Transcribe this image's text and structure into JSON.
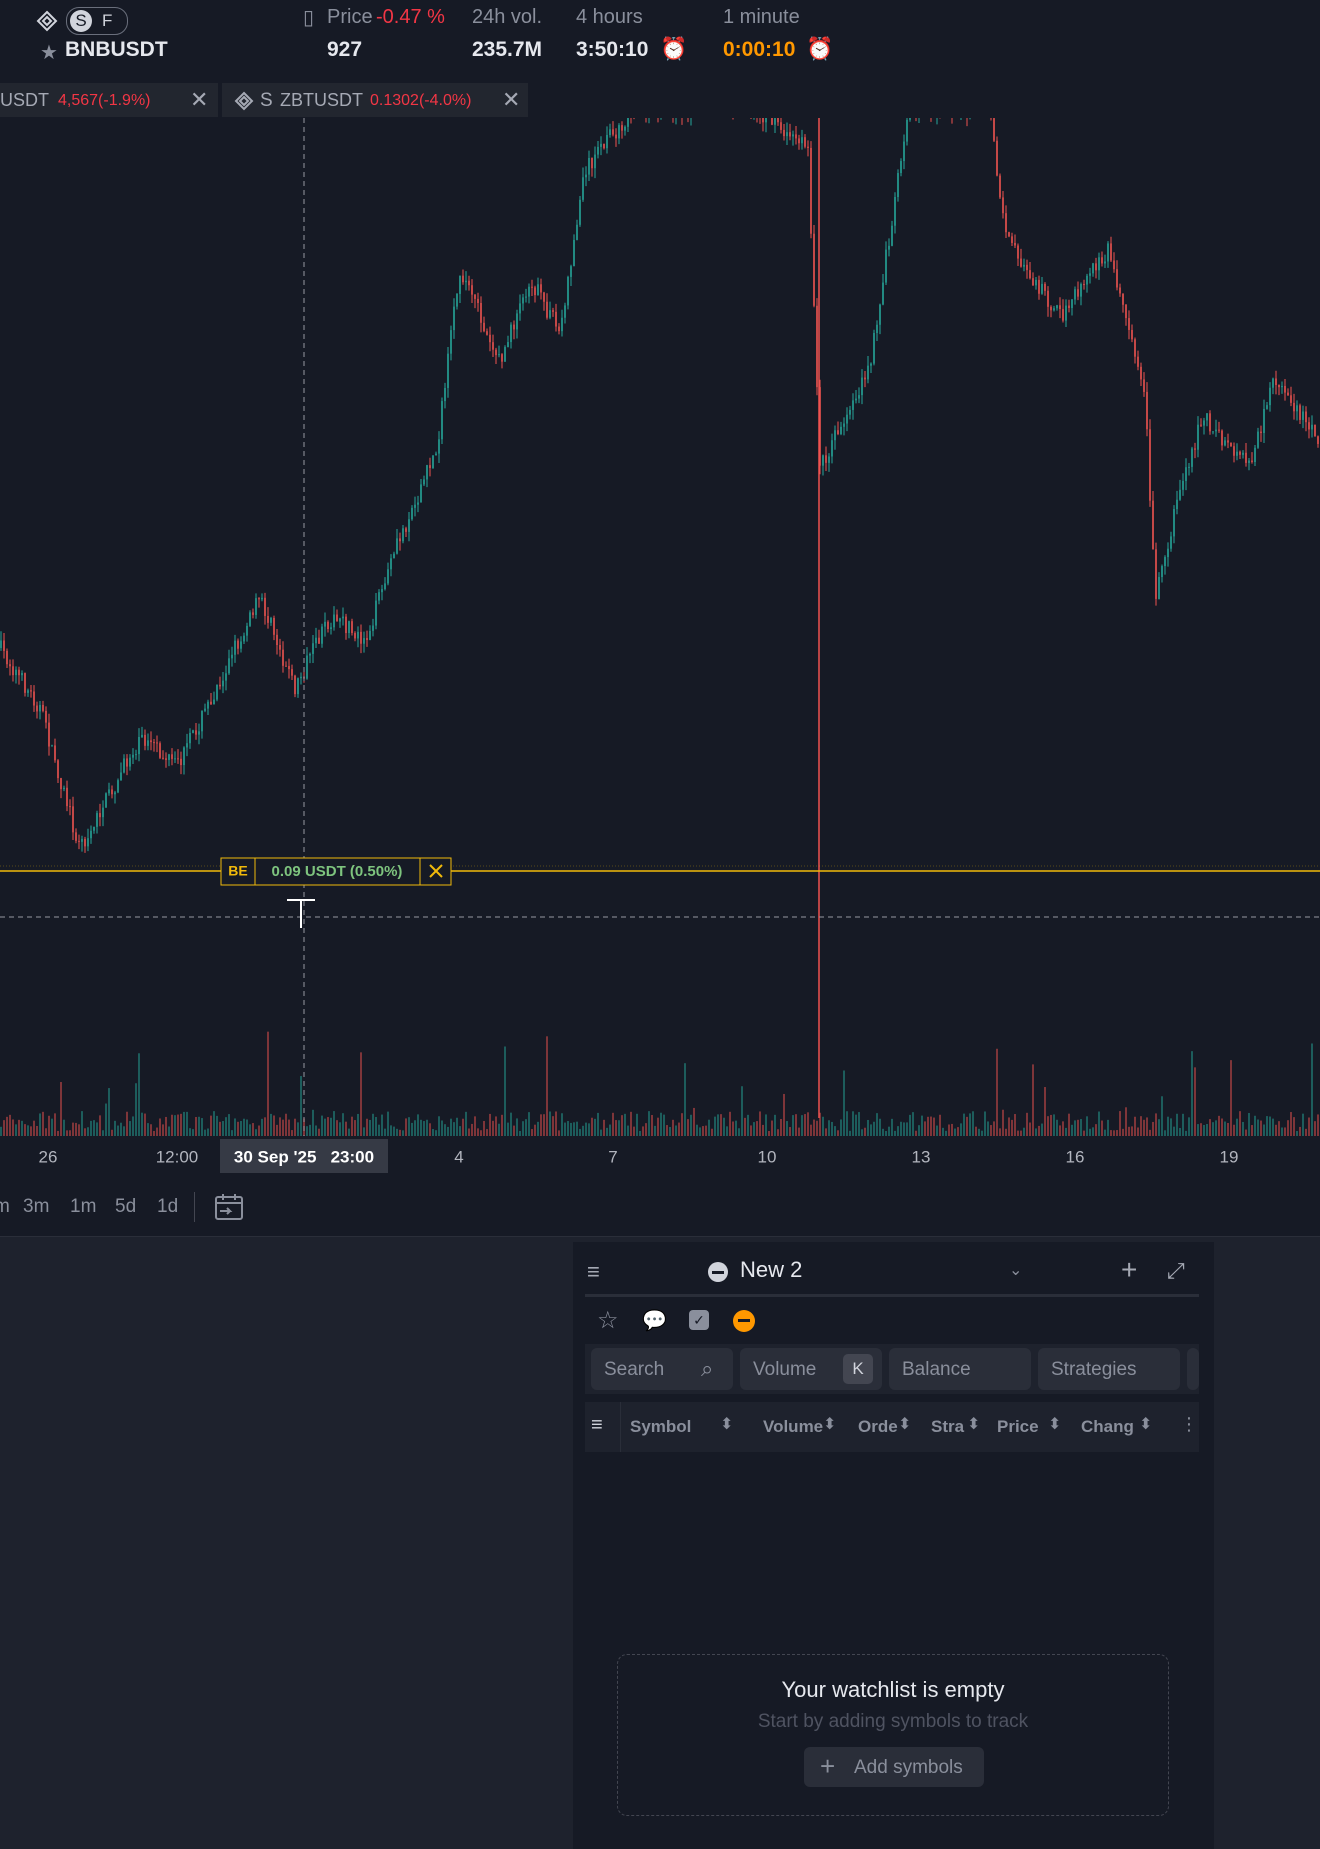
{
  "header": {
    "badges": [
      "S",
      "F"
    ],
    "symbol": "BNBUSDT",
    "price_label": "Price",
    "price_change": "-0.47 %",
    "price": "927",
    "vol_label": "24h vol.",
    "vol": "235.7M",
    "timer1_label": "4 hours",
    "timer1": "3:50:10",
    "timer2_label": "1 minute",
    "timer2": "0:00:10"
  },
  "tabs": [
    {
      "symbol": "USDT",
      "info": "4,567(-1.9%)"
    },
    {
      "prefix": "S",
      "symbol": "ZBTUSDT",
      "info": "0.1302(-4.0%)"
    }
  ],
  "chart": {
    "order_badge": "BE",
    "order_label": "0.09 USDT (0.50%)",
    "x_labels": [
      "26",
      "12:00",
      "4",
      "7",
      "10",
      "13",
      "16",
      "19"
    ],
    "crosshair_label": "30 Sep '25   23:00"
  },
  "timeframes": [
    "m",
    "3m",
    "1m",
    "5d",
    "1d"
  ],
  "watchlist": {
    "title": "New 2",
    "search": "Search",
    "filters": [
      "Volume",
      "K",
      "Balance",
      "Strategies"
    ],
    "columns": [
      "Symbol",
      "Volume",
      "Orde",
      "Stra",
      "Price",
      "Chang"
    ],
    "empty_title": "Your watchlist is empty",
    "empty_subtitle": "Start by adding symbols to track",
    "add_button": "Add symbols"
  }
}
